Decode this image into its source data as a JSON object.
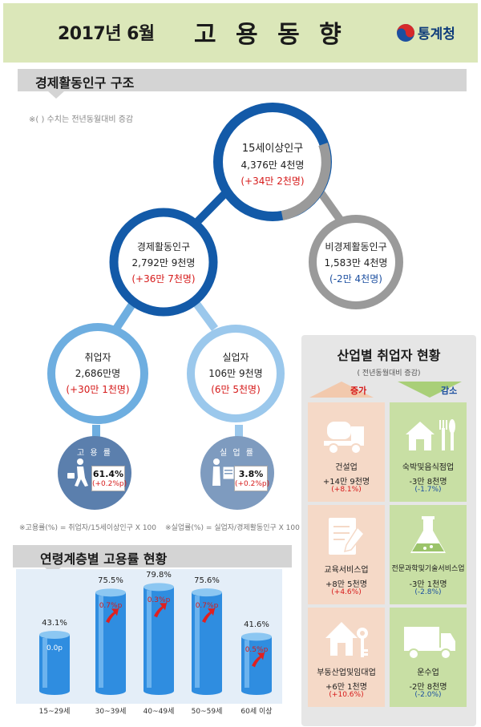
{
  "header": {
    "period": "2017년 6월",
    "title": "고 용 동 향",
    "logo_text": "통계청"
  },
  "structure": {
    "section_title": "경제활동인구 구조",
    "note": "※( ) 수치는 전년동월대비 증감",
    "pop15": {
      "label": "15세이상인구",
      "value": "4,376만 4천명",
      "change": "(+34만 2천명)"
    },
    "active": {
      "label": "경제활동인구",
      "value": "2,792만 9천명",
      "change": "(+36만 7천명)"
    },
    "inactive": {
      "label": "비경제활동인구",
      "value": "1,583만 4천명",
      "change": "(-2만 4천명)"
    },
    "employed": {
      "label": "취업자",
      "value": "2,686만명",
      "change": "(+30만 1천명)"
    },
    "unemployed": {
      "label": "실업자",
      "value": "106만 9천명",
      "change": "(6만 5천명)"
    },
    "employment_rate": {
      "label": "고 용 률",
      "value": "61.4%",
      "change": "(+0.2%p)"
    },
    "unemployment_rate": {
      "label": "실 업 률",
      "value": "3.8%",
      "change": "(+0.2%p)"
    },
    "employment_rate_formula": "※고용률(%) = 취업자/15세이상인구 X 100",
    "unemployment_rate_formula": "※실업률(%) = 실업자/경제활동인구 X 100"
  },
  "age": {
    "section_title": "연령계층별 고용률 현황",
    "chart_data": {
      "type": "bar",
      "title": "연령계층별 고용률 현황",
      "categories": [
        "15~29세",
        "30~39세",
        "40~49세",
        "50~59세",
        "60세 이상"
      ],
      "values": [
        43.1,
        75.5,
        79.8,
        75.6,
        41.6
      ],
      "value_labels": [
        "43.1%",
        "75.5%",
        "79.8%",
        "75.6%",
        "41.6%"
      ],
      "changes": [
        "0.0p",
        "0.7%p",
        "0.3%p",
        "0.7%p",
        "0.5%p"
      ],
      "arrow_up": [
        false,
        true,
        true,
        true,
        true
      ],
      "ylim": [
        0,
        100
      ]
    }
  },
  "industry": {
    "title": "산업별 취업자 현황",
    "subtitle": "( 전년동월대비 증감)",
    "increase_label": "증가",
    "decrease_label": "감소",
    "increase": [
      {
        "name": "건설업",
        "value": "+14만 9천명",
        "pct": "(+8.1%)",
        "icon": "cement-mixer-truck-icon"
      },
      {
        "name": "교육서비스업",
        "value": "+8만 5천명",
        "pct": "(+4.6%)",
        "icon": "notebook-pencil-icon"
      },
      {
        "name": "부동산업및임대업",
        "value": "+6만 1천명",
        "pct": "(+10.6%)",
        "icon": "house-key-icon"
      }
    ],
    "decrease": [
      {
        "name": "숙박및음식점업",
        "value": "-3만 8천명",
        "pct": "(-1.7%)",
        "icon": "house-fork-knife-icon"
      },
      {
        "name": "전문과학및기술서비스업",
        "value": "-3만 1천명",
        "pct": "(-2.8%)",
        "icon": "flask-icon"
      },
      {
        "name": "운수업",
        "value": "-2만 8천명",
        "pct": "(-2.0%)",
        "icon": "truck-icon"
      }
    ]
  },
  "colors": {
    "header_bg": "#dbe7b9",
    "dark_blue": "#135aa8",
    "light_blue": "#6eaee0",
    "gray": "#9a9a9a",
    "increase_red": "#d61a1a",
    "decrease_blue": "#1c4fa0",
    "increase_bg": "#f5d9c7",
    "decrease_bg": "#c8dfa4"
  }
}
